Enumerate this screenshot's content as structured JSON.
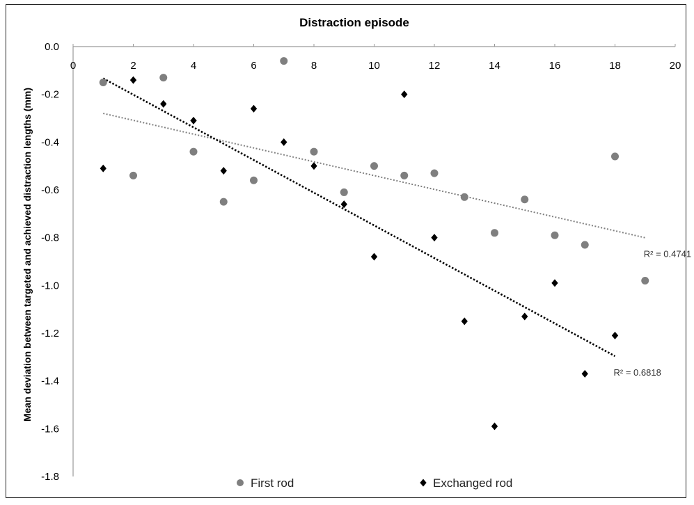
{
  "chart_data": {
    "type": "scatter",
    "title": "Distraction episode",
    "xlabel": "",
    "ylabel": "Mean deviation between targeted and achieved distraction  lengths (mm)",
    "xlim": [
      0,
      20
    ],
    "ylim": [
      -1.8,
      0.0
    ],
    "x_ticks": [
      0,
      2,
      4,
      6,
      8,
      10,
      12,
      14,
      16,
      18,
      20
    ],
    "y_ticks": [
      0.0,
      -0.2,
      -0.4,
      -0.6,
      -0.8,
      -1.0,
      -1.2,
      -1.4,
      -1.6,
      -1.8
    ],
    "x_tick_labels": [
      "0",
      "2",
      "4",
      "6",
      "8",
      "10",
      "12",
      "14",
      "16",
      "18",
      "20"
    ],
    "y_tick_labels": [
      "0.0",
      "-0.2",
      "-0.4",
      "-0.6",
      "-0.8",
      "-1.0",
      "-1.2",
      "-1.4",
      "-1.6",
      "-1.8"
    ],
    "x_axis_position": "top",
    "grid": false,
    "legend_position": "bottom",
    "series": [
      {
        "name": "First rod",
        "marker": "circle",
        "color": "#7f7f7f",
        "x": [
          1,
          2,
          3,
          4,
          5,
          6,
          7,
          8,
          9,
          10,
          11,
          12,
          13,
          14,
          15,
          16,
          17,
          18,
          19
        ],
        "y": [
          -0.15,
          -0.54,
          -0.13,
          -0.44,
          -0.65,
          -0.56,
          -0.06,
          -0.44,
          -0.61,
          -0.5,
          -0.54,
          -0.53,
          -0.63,
          -0.78,
          -0.64,
          -0.79,
          -0.83,
          -0.46,
          -0.98
        ],
        "trendline": {
          "type": "linear",
          "r2_label": "R² = 0.4741",
          "color": "#7f7f7f",
          "x_range": [
            1,
            19
          ]
        }
      },
      {
        "name": "Exchanged rod",
        "marker": "diamond",
        "color": "#000000",
        "x": [
          1,
          2,
          3,
          4,
          5,
          6,
          7,
          8,
          9,
          10,
          11,
          12,
          13,
          14,
          15,
          16,
          17,
          18
        ],
        "y": [
          -0.51,
          -0.14,
          -0.24,
          -0.31,
          -0.52,
          -0.26,
          -0.4,
          -0.5,
          -0.66,
          -0.88,
          -0.2,
          -0.8,
          -1.15,
          -1.59,
          -1.13,
          -0.99,
          -1.37,
          -1.21
        ],
        "trendline": {
          "type": "linear",
          "r2_label": "R² = 0.6818",
          "color": "#000000",
          "x_range": [
            1,
            18
          ]
        }
      }
    ]
  }
}
